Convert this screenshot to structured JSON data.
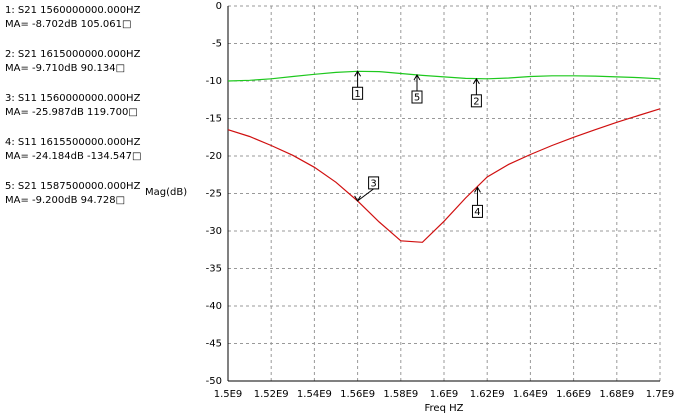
{
  "chart_data": {
    "type": "line",
    "y_label": "Mag(dB)",
    "x_label": "Freq HZ",
    "xlim": [
      1500000000,
      1700000000
    ],
    "ylim": [
      -50,
      0
    ],
    "xticks": [
      {
        "value": 1500000000,
        "label": "1.5E9"
      },
      {
        "value": 1520000000,
        "label": "1.52E9"
      },
      {
        "value": 1540000000,
        "label": "1.54E9"
      },
      {
        "value": 1560000000,
        "label": "1.56E9"
      },
      {
        "value": 1580000000,
        "label": "1.58E9"
      },
      {
        "value": 1600000000,
        "label": "1.6E9"
      },
      {
        "value": 1620000000,
        "label": "1.62E9"
      },
      {
        "value": 1640000000,
        "label": "1.64E9"
      },
      {
        "value": 1660000000,
        "label": "1.66E9"
      },
      {
        "value": 1680000000,
        "label": "1.68E9"
      },
      {
        "value": 1700000000,
        "label": "1.7E9"
      }
    ],
    "yticks": [
      0,
      -5,
      -10,
      -15,
      -20,
      -25,
      -30,
      -35,
      -40,
      -45,
      -50
    ],
    "grid": true,
    "x": [
      1500000000,
      1510000000,
      1520000000,
      1530000000,
      1540000000,
      1550000000,
      1560000000,
      1570000000,
      1580000000,
      1590000000,
      1600000000,
      1610000000,
      1620000000,
      1630000000,
      1640000000,
      1650000000,
      1660000000,
      1670000000,
      1680000000,
      1690000000,
      1700000000
    ],
    "series": [
      {
        "name": "S21",
        "color": "#1ec81e",
        "values": [
          -10.0,
          -9.9,
          -9.7,
          -9.4,
          -9.1,
          -8.85,
          -8.7,
          -8.75,
          -9.0,
          -9.25,
          -9.45,
          -9.65,
          -9.7,
          -9.6,
          -9.4,
          -9.3,
          -9.3,
          -9.35,
          -9.45,
          -9.55,
          -9.7
        ]
      },
      {
        "name": "S11",
        "color": "#d01010",
        "values": [
          -16.5,
          -17.4,
          -18.6,
          -19.9,
          -21.5,
          -23.5,
          -26.0,
          -28.8,
          -31.3,
          -31.5,
          -28.7,
          -25.6,
          -22.8,
          -21.1,
          -19.8,
          -18.6,
          -17.5,
          -16.5,
          -15.5,
          -14.6,
          -13.7
        ]
      }
    ],
    "markers": [
      {
        "label": "1",
        "x": 1560000000,
        "y": -8.702,
        "readout": [
          "1: S21  1560000000.000HZ",
          "MA= -8.702dB 105.061□"
        ]
      },
      {
        "label": "2",
        "x": 1615000000,
        "y": -9.71,
        "readout": [
          "2: S21  1615000000.000HZ",
          "MA= -9.710dB 90.134□"
        ]
      },
      {
        "label": "3",
        "x": 1560000000,
        "y": -25.987,
        "readout": [
          "3: S11  1560000000.000HZ",
          "MA= -25.987dB 119.700□"
        ]
      },
      {
        "label": "4",
        "x": 1615500000,
        "y": -24.184,
        "readout": [
          "4: S11  1615500000.000HZ",
          "MA= -24.184dB -134.547□"
        ]
      },
      {
        "label": "5",
        "x": 1587500000,
        "y": -9.2,
        "readout": [
          "5: S21  1587500000.000HZ",
          "MA= -9.200dB 94.728□"
        ]
      }
    ]
  }
}
